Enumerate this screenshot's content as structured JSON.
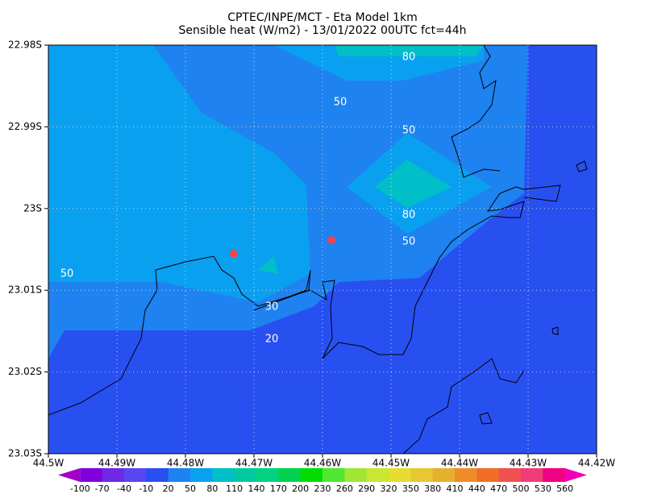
{
  "title": [
    "CPTEC/INPE/MCT -  Eta Model 1km",
    "Sensible heat (W/m2) - 13/01/2022 00UTC fct=44h"
  ],
  "lat_labels": [
    "22.98S",
    "22.99S",
    "23S",
    "23.01S",
    "23.02S",
    "23.03S"
  ],
  "lon_labels": [
    "44.5W",
    "44.49W",
    "44.48W",
    "44.47W",
    "44.46W",
    "44.45W",
    "44.44W",
    "44.43W",
    "44.42W"
  ],
  "contour_labels": [
    80,
    50,
    50,
    80,
    50,
    50,
    30,
    20
  ],
  "colorbar": {
    "labels": [
      -100,
      -70,
      -40,
      -10,
      20,
      50,
      80,
      110,
      140,
      170,
      200,
      230,
      260,
      290,
      320,
      350,
      380,
      410,
      440,
      470,
      500,
      530,
      560
    ],
    "colors": [
      "#a000c8",
      "#8200dc",
      "#6e28e6",
      "#5a46f0",
      "#2850f0",
      "#1e82f0",
      "#0aa0f0",
      "#00bfc8",
      "#00c8a0",
      "#00d282",
      "#00d250",
      "#00dc00",
      "#50e632",
      "#a0e632",
      "#c8e632",
      "#e6dc32",
      "#e6c832",
      "#e6af2d",
      "#f08c28",
      "#f06e28",
      "#f05050",
      "#f03c78",
      "#f00082",
      "#f000b4"
    ]
  }
}
